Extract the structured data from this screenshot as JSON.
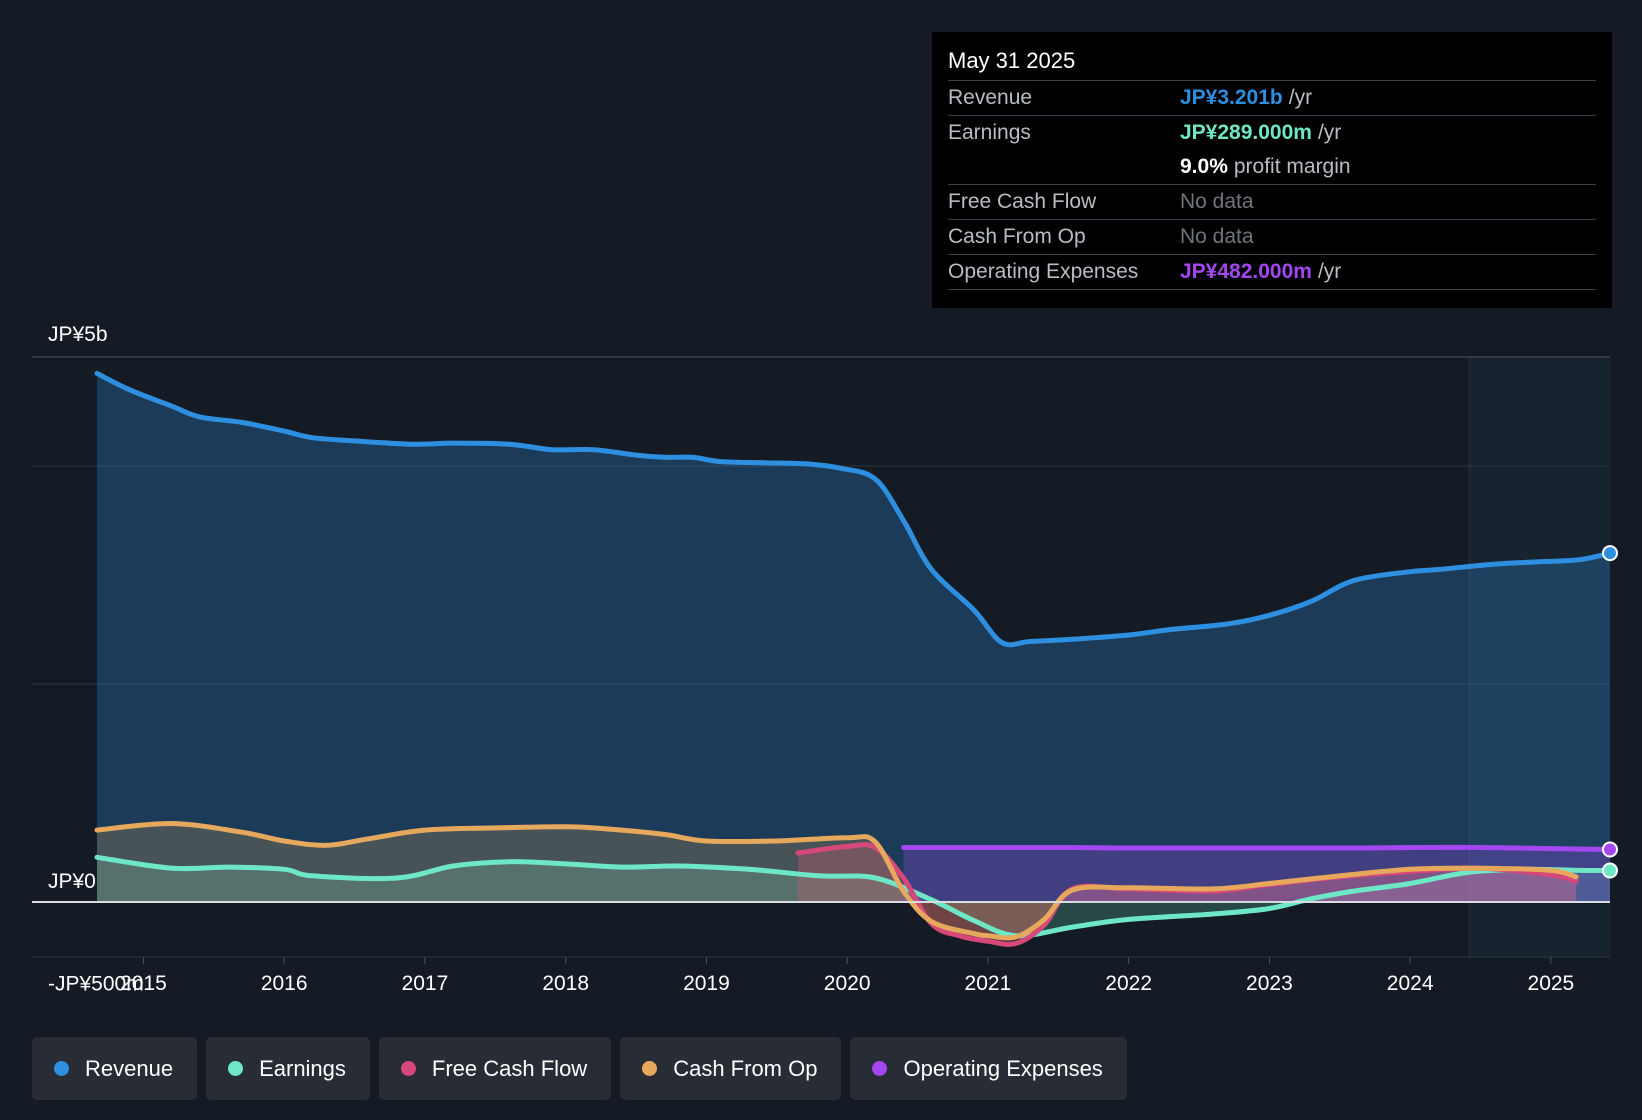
{
  "colors": {
    "background": "#151b24",
    "revenue": "#2e8fe0",
    "earnings": "#6ee7c7",
    "fcf": "#d6487a",
    "cfo": "#e6a85c",
    "opex": "#a347f0"
  },
  "tooltip": {
    "date": "May 31 2025",
    "rows": [
      {
        "label": "Revenue",
        "value": "JP¥3.201b",
        "unit": "/yr"
      },
      {
        "label": "Earnings",
        "value": "JP¥289.000m",
        "unit": "/yr"
      },
      {
        "label": "",
        "value": "9.0%",
        "unit": "profit margin"
      },
      {
        "label": "Free Cash Flow",
        "value": "No data"
      },
      {
        "label": "Cash From Op",
        "value": "No data"
      },
      {
        "label": "Operating Expenses",
        "value": "JP¥482.000m",
        "unit": "/yr"
      }
    ]
  },
  "legend": [
    {
      "label": "Revenue",
      "color": "#2e8fe0"
    },
    {
      "label": "Earnings",
      "color": "#6ee7c7"
    },
    {
      "label": "Free Cash Flow",
      "color": "#d6487a"
    },
    {
      "label": "Cash From Op",
      "color": "#e6a85c"
    },
    {
      "label": "Operating Expenses",
      "color": "#a347f0"
    }
  ],
  "chart_data": {
    "type": "line",
    "title": "",
    "xlabel": "",
    "ylabel": "",
    "ylim": [
      -500,
      5000
    ],
    "xlim": [
      2014.67,
      2025.42
    ],
    "y_labels": [
      {
        "value": 5000,
        "text": "JP¥5b"
      },
      {
        "value": 0,
        "text": "JP¥0"
      },
      {
        "value": -500,
        "text": "-JP¥500m"
      }
    ],
    "gridlines": [
      5000,
      4000,
      2000
    ],
    "x_ticks": [
      "2015",
      "2016",
      "2017",
      "2018",
      "2019",
      "2020",
      "2021",
      "2022",
      "2023",
      "2024",
      "2025"
    ],
    "x_tick_values": [
      2015,
      2016,
      2017,
      2018,
      2019,
      2020,
      2021,
      2022,
      2023,
      2024,
      2025
    ],
    "forecast_start": 2024.42,
    "series": [
      {
        "name": "Revenue",
        "x": [
          2014.67,
          2014.9,
          2015.2,
          2015.4,
          2015.7,
          2016.0,
          2016.2,
          2016.5,
          2016.9,
          2017.2,
          2017.6,
          2017.9,
          2018.2,
          2018.5,
          2018.7,
          2018.9,
          2019.1,
          2019.4,
          2019.7,
          2019.95,
          2020.2,
          2020.4,
          2020.6,
          2020.9,
          2021.1,
          2021.3,
          2021.6,
          2022.0,
          2022.3,
          2022.7,
          2023.0,
          2023.3,
          2023.6,
          2024.0,
          2024.2,
          2024.6,
          2024.9,
          2025.2,
          2025.42
        ],
        "values": [
          4850,
          4700,
          4550,
          4450,
          4400,
          4320,
          4260,
          4230,
          4200,
          4210,
          4200,
          4150,
          4150,
          4100,
          4080,
          4080,
          4040,
          4030,
          4020,
          3980,
          3880,
          3500,
          3050,
          2680,
          2380,
          2390,
          2410,
          2450,
          2500,
          2550,
          2630,
          2760,
          2950,
          3030,
          3050,
          3100,
          3120,
          3140,
          3201
        ]
      },
      {
        "name": "Earnings",
        "x": [
          2014.67,
          2015.2,
          2015.6,
          2016.0,
          2016.2,
          2016.8,
          2017.2,
          2017.6,
          2018.0,
          2018.4,
          2018.8,
          2019.3,
          2019.8,
          2020.2,
          2020.6,
          2020.9,
          2021.2,
          2021.6,
          2022.0,
          2022.6,
          2023.0,
          2023.3,
          2023.6,
          2024.0,
          2024.4,
          2024.8,
          2025.2,
          2025.42
        ],
        "values": [
          410,
          310,
          320,
          300,
          240,
          220,
          330,
          370,
          350,
          320,
          330,
          300,
          240,
          220,
          20,
          -170,
          -310,
          -230,
          -160,
          -110,
          -60,
          30,
          100,
          170,
          270,
          300,
          290,
          289
        ]
      },
      {
        "name": "Free Cash Flow",
        "x": [
          2019.65,
          2020.0,
          2020.2,
          2020.4,
          2020.6,
          2020.8,
          2021.0,
          2021.2,
          2021.4,
          2021.6,
          2022.0,
          2022.6,
          2023.0,
          2023.5,
          2024.0,
          2024.5,
          2025.0,
          2025.18
        ],
        "values": [
          450,
          510,
          500,
          220,
          -200,
          -310,
          -360,
          -380,
          -210,
          120,
          120,
          100,
          160,
          230,
          280,
          310,
          250,
          190
        ]
      },
      {
        "name": "Cash From Op",
        "x": [
          2014.67,
          2015.2,
          2015.7,
          2016.0,
          2016.3,
          2016.6,
          2017.0,
          2017.5,
          2018.0,
          2018.3,
          2018.7,
          2019.0,
          2019.5,
          2020.0,
          2020.2,
          2020.4,
          2020.6,
          2020.9,
          2021.0,
          2021.2,
          2021.4,
          2021.6,
          2022.0,
          2022.6,
          2023.0,
          2023.5,
          2024.0,
          2024.5,
          2025.0,
          2025.18
        ],
        "values": [
          660,
          720,
          640,
          560,
          520,
          580,
          660,
          680,
          690,
          670,
          620,
          560,
          560,
          590,
          550,
          100,
          -180,
          -290,
          -310,
          -320,
          -160,
          110,
          130,
          120,
          170,
          240,
          300,
          310,
          290,
          230
        ]
      },
      {
        "name": "Operating Expenses",
        "x": [
          2020.4,
          2021.0,
          2021.6,
          2022.0,
          2022.6,
          2023.0,
          2023.6,
          2024.0,
          2024.5,
          2025.0,
          2025.42
        ],
        "values": [
          500,
          500,
          500,
          495,
          495,
          495,
          495,
          500,
          500,
          490,
          482
        ]
      }
    ]
  }
}
